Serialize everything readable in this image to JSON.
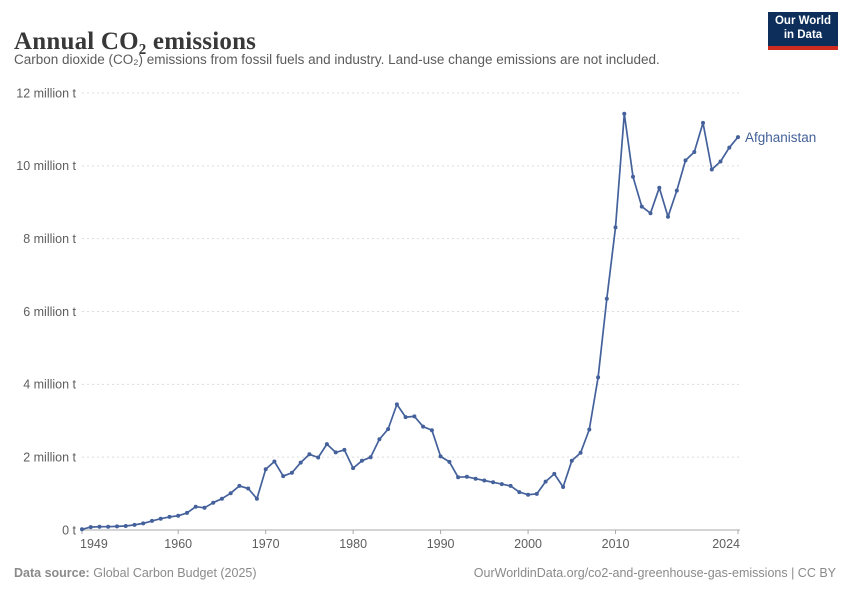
{
  "header": {
    "logo": {
      "line1": "Our World",
      "line2": "in Data"
    }
  },
  "chart_data": {
    "type": "line",
    "title": "Annual CO₂ emissions",
    "subtitle": "Carbon dioxide (CO₂) emissions from fossil fuels and industry. Land-use change emissions are not included.",
    "xlabel": "",
    "ylabel": "",
    "xlim": [
      1949,
      2024
    ],
    "ylim": [
      0,
      12
    ],
    "grid": "horizontal-dashed",
    "legend_position": "end-of-line-label",
    "x_ticks": [
      1949,
      1960,
      1970,
      1980,
      1990,
      2000,
      2010,
      2024
    ],
    "y_ticks": [
      {
        "value": 0,
        "label": "0 t"
      },
      {
        "value": 2,
        "label": "2 million t"
      },
      {
        "value": 4,
        "label": "4 million t"
      },
      {
        "value": 6,
        "label": "6 million t"
      },
      {
        "value": 8,
        "label": "8 million t"
      },
      {
        "value": 10,
        "label": "10 million t"
      },
      {
        "value": 12,
        "label": "12 million t"
      }
    ],
    "unit": "million tonnes",
    "series": [
      {
        "name": "Afghanistan",
        "color": "#44619B",
        "start_year": 1949,
        "end_year": 2024,
        "values": [
          0.02,
          0.08,
          0.09,
          0.09,
          0.1,
          0.11,
          0.14,
          0.18,
          0.25,
          0.31,
          0.36,
          0.39,
          0.47,
          0.64,
          0.61,
          0.75,
          0.86,
          1.01,
          1.21,
          1.14,
          0.86,
          1.67,
          1.88,
          1.48,
          1.57,
          1.85,
          2.08,
          1.99,
          2.36,
          2.13,
          2.2,
          1.7,
          1.9,
          2.0,
          2.49,
          2.77,
          3.45,
          3.1,
          3.12,
          2.84,
          2.74,
          2.02,
          1.87,
          1.45,
          1.46,
          1.41,
          1.36,
          1.31,
          1.26,
          1.21,
          1.04,
          0.97,
          0.99,
          1.33,
          1.54,
          1.18,
          1.9,
          2.12,
          2.76,
          4.19,
          6.35,
          8.31,
          11.43,
          9.7,
          8.88,
          8.7,
          9.4,
          8.6,
          9.32,
          10.15,
          10.38,
          11.18,
          9.9,
          10.12,
          10.5,
          10.79
        ]
      }
    ]
  },
  "footer": {
    "source_label": "Data source:",
    "source_value": "Global Carbon Budget (2025)",
    "license": "OurWorldinData.org/co2-and-greenhouse-gas-emissions | CC BY"
  },
  "colors": {
    "accent_blue": "#44619B",
    "title": "#383838",
    "subtitle": "#5B5B5B",
    "axis_text": "#5E5E5E",
    "grid": "#DCDCDC",
    "axis_line": "#A8A8A8",
    "footer_text": "#8A8A8A",
    "logo_bg": "#0D2E5B",
    "logo_bar": "#D02B20"
  }
}
